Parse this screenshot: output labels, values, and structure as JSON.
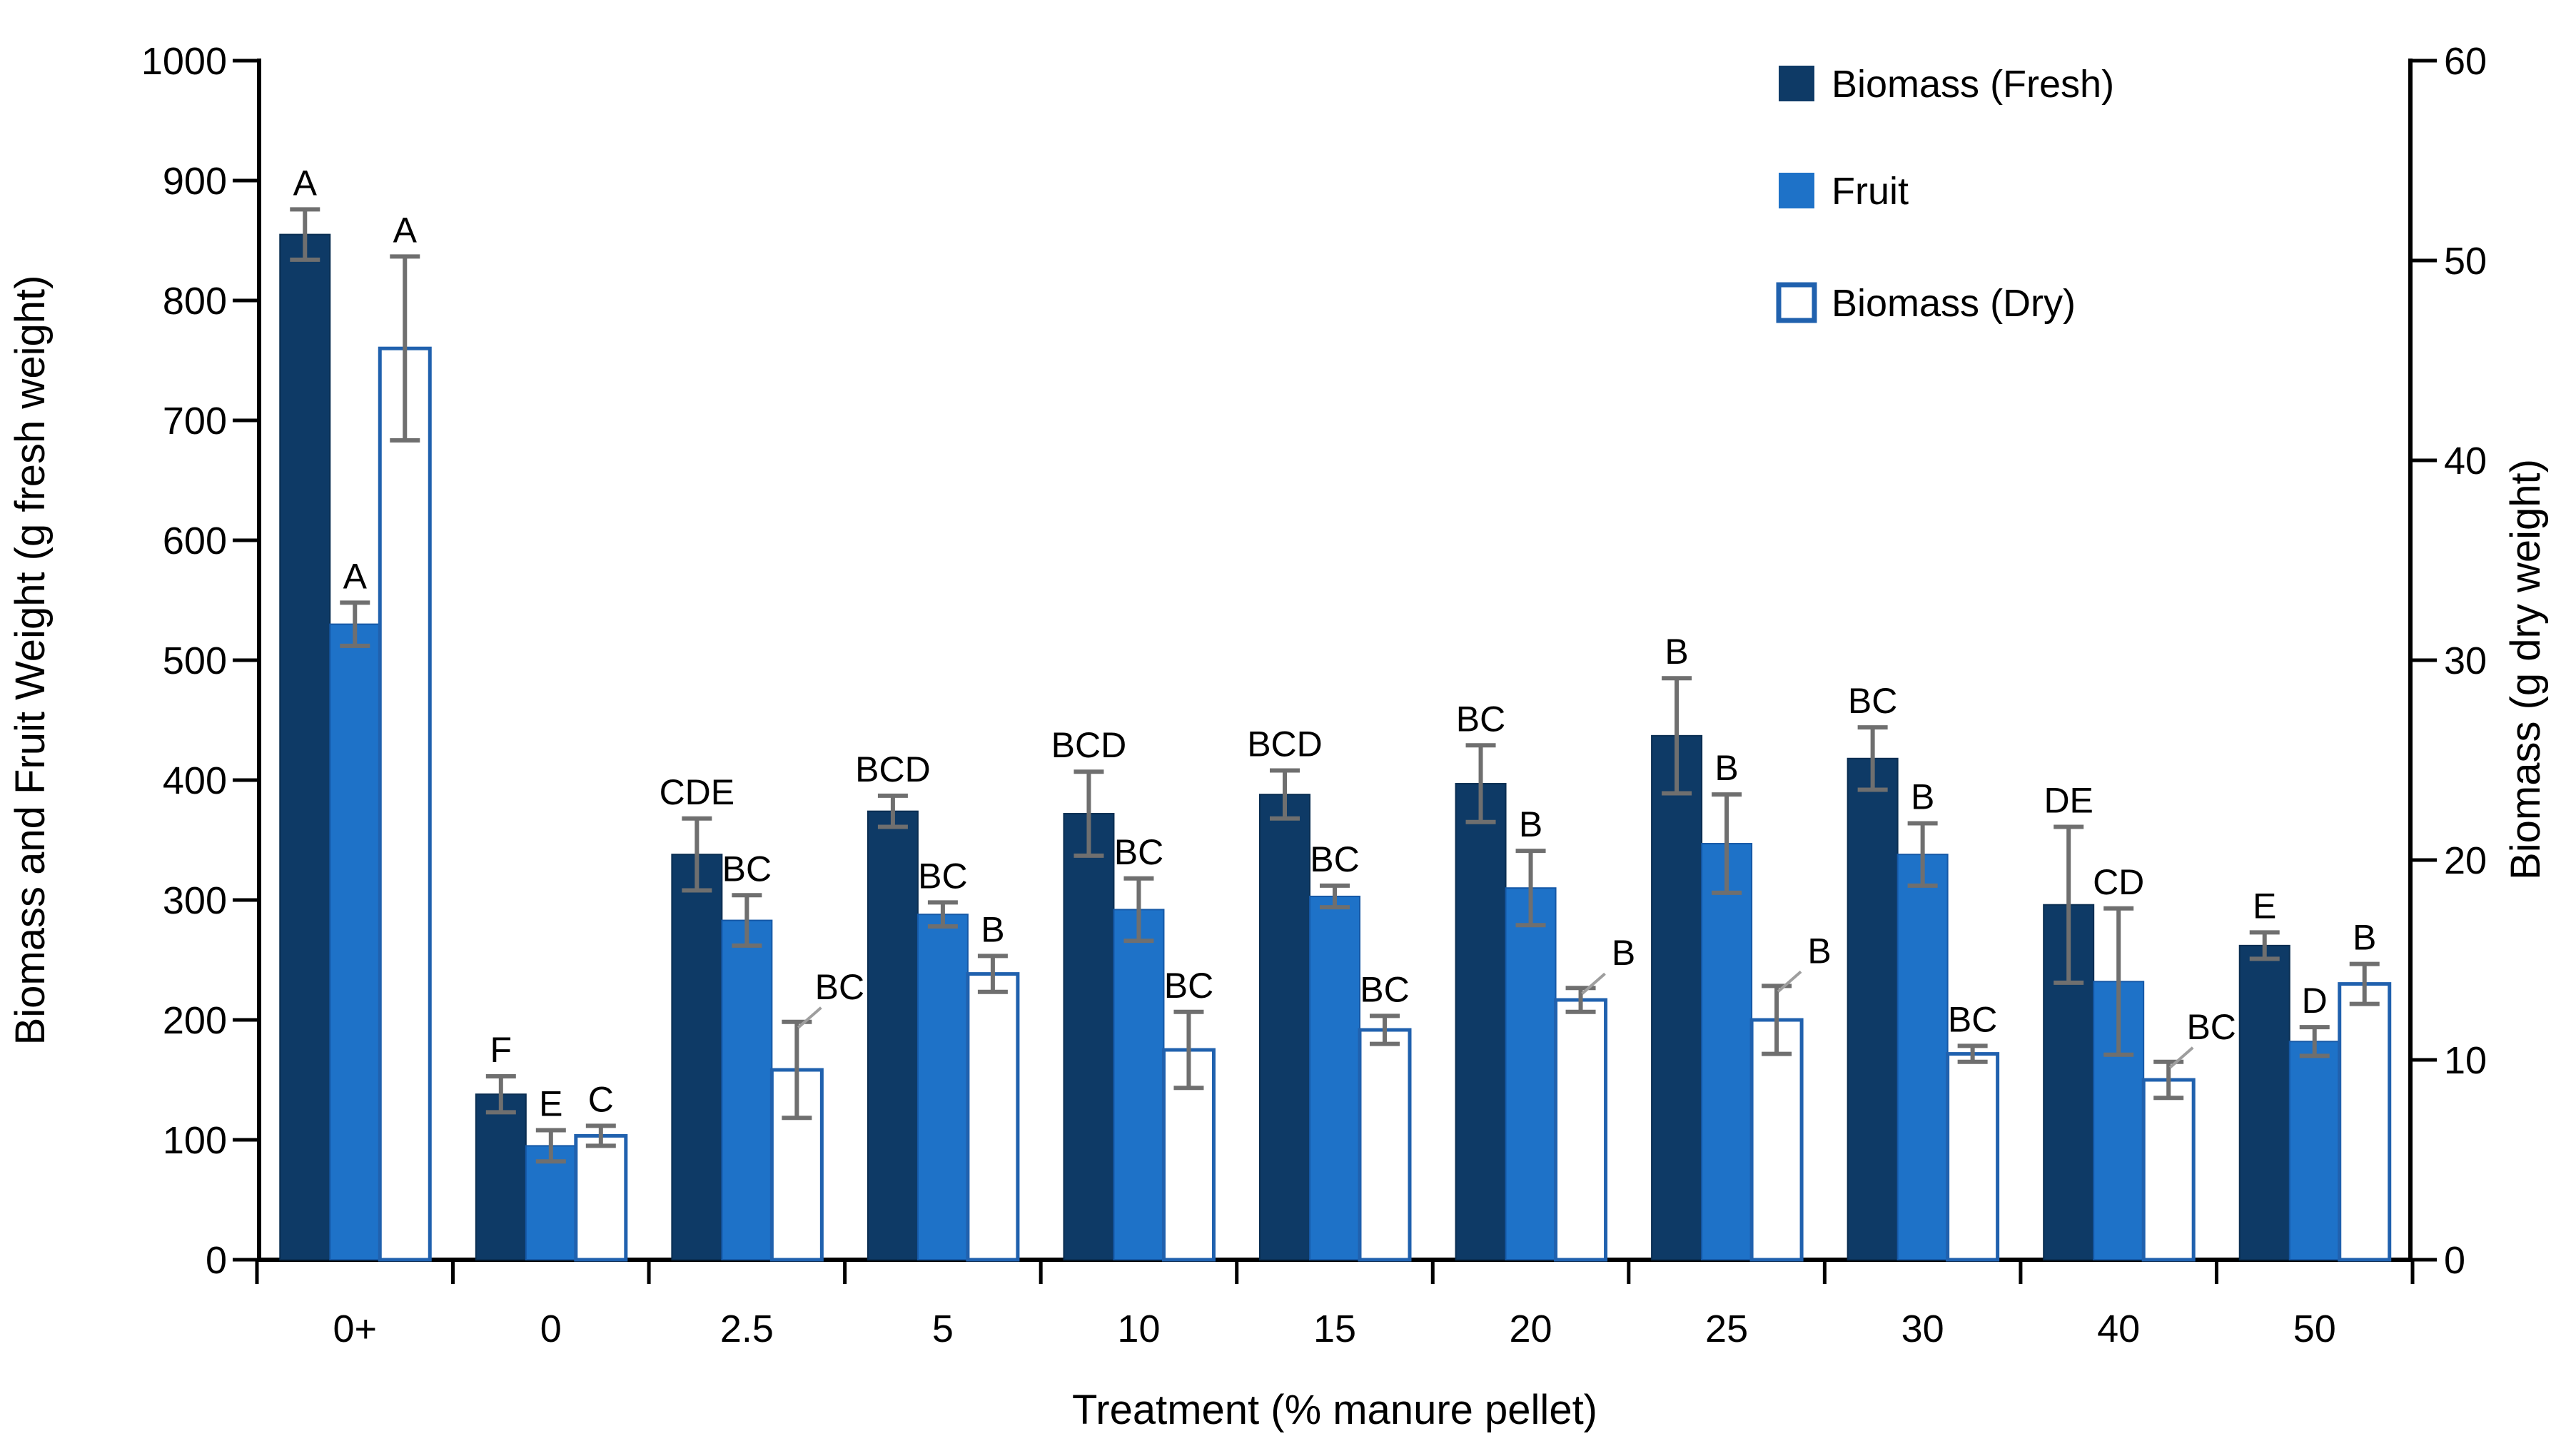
{
  "legend": {
    "items": [
      {
        "label": "Biomass (Fresh)"
      },
      {
        "label": "Fruit"
      },
      {
        "label": "Biomass (Dry)"
      }
    ]
  },
  "axes": {
    "left": {
      "title": "Biomass and Fruit Weight (g fresh weight)",
      "ticks": [
        0,
        100,
        200,
        300,
        400,
        500,
        600,
        700,
        800,
        900,
        1000
      ],
      "range": [
        0,
        1000
      ]
    },
    "right": {
      "title": "Biomass (g dry weight)",
      "ticks": [
        0,
        10,
        20,
        30,
        40,
        50,
        60
      ],
      "range": [
        0,
        60
      ]
    },
    "x": {
      "title": "Treatment (% manure pellet)"
    }
  },
  "chart_data": {
    "type": "bar",
    "categories": [
      "0+",
      "0",
      "2.5",
      "5",
      "10",
      "15",
      "20",
      "25",
      "30",
      "40",
      "50"
    ],
    "grid": false,
    "legend_position": "top-right",
    "ylim_left": [
      0,
      1000
    ],
    "ylim_right": [
      0,
      60
    ],
    "error_bar_color": "#6F6F6F",
    "leader_line_color": "#9E9E9E",
    "letter_color": "#000000",
    "series": [
      {
        "name": "Biomass (Fresh)",
        "axis": "left",
        "color": "#0E3A66",
        "stroke": "#0A2E52",
        "values": [
          855,
          138,
          338,
          374,
          372,
          388,
          397,
          437,
          418,
          296,
          262
        ],
        "errors": [
          21,
          15,
          30,
          13,
          35,
          20,
          32,
          48,
          26,
          65,
          11
        ],
        "letters": [
          "A",
          "F",
          "CDE",
          "BCD",
          "BCD",
          "BCD",
          "BC",
          "B",
          "BC",
          "DE",
          "E"
        ],
        "leader_lines": [
          false,
          false,
          false,
          false,
          false,
          false,
          false,
          false,
          false,
          false,
          false
        ]
      },
      {
        "name": "Fruit",
        "axis": "left",
        "color": "#1E72C8",
        "stroke": "#1558A6",
        "values": [
          530,
          95,
          283,
          288,
          292,
          303,
          310,
          347,
          338,
          232,
          182
        ],
        "errors": [
          18,
          13,
          21,
          10,
          26,
          9,
          31,
          41,
          26,
          61,
          12
        ],
        "letters": [
          "A",
          "E",
          "BC",
          "BC",
          "BC",
          "BC",
          "B",
          "B",
          "B",
          "CD",
          "D"
        ],
        "leader_lines": [
          false,
          false,
          false,
          false,
          false,
          false,
          false,
          false,
          false,
          false,
          false
        ]
      },
      {
        "name": "Biomass (Dry)",
        "axis": "right",
        "color": "#2061AE",
        "fill": "#FFFFFF",
        "stroke": "#2061AE",
        "values": [
          45.6,
          6.2,
          9.5,
          14.3,
          10.5,
          11.5,
          13.0,
          12.0,
          10.3,
          9.0,
          13.8
        ],
        "errors": [
          4.6,
          0.5,
          2.4,
          0.9,
          1.9,
          0.7,
          0.6,
          1.7,
          0.4,
          0.9,
          1.0
        ],
        "letters": [
          "A",
          "C",
          "BC",
          "B",
          "BC",
          "BC",
          "B",
          "B",
          "BC",
          "BC",
          "B"
        ],
        "leader_lines": [
          false,
          false,
          true,
          false,
          false,
          false,
          true,
          true,
          false,
          true,
          false
        ]
      }
    ]
  }
}
